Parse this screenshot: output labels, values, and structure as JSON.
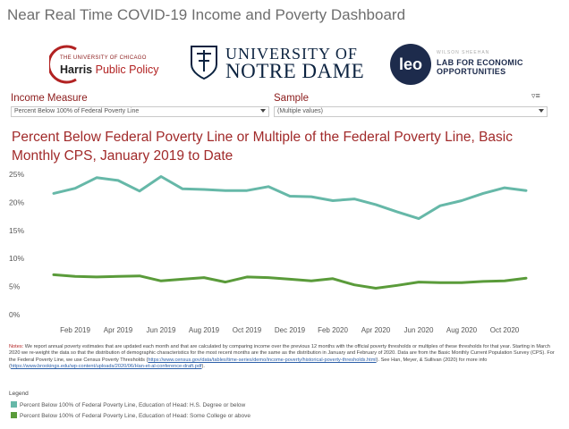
{
  "dashboard": {
    "title": "Near Real Time COVID-19 Income and Poverty Dashboard"
  },
  "logos": {
    "uchicago": {
      "small_text": "THE UNIVERSITY OF CHICAGO",
      "name_part1": "Harris",
      "name_part2": " Public Policy",
      "color": "#b22222"
    },
    "notre_dame": {
      "line1": "UNIVERSITY OF",
      "line2": "NOTRE DAME",
      "color": "#0c2340"
    },
    "leo": {
      "mark": "leo",
      "small_text": "WILSON SHEEHAN",
      "line1": "LAB FOR ECONOMIC",
      "line2": "OPPORTUNITIES",
      "color": "#1d2b4c"
    }
  },
  "filters": {
    "income_measure": {
      "label": "Income Measure",
      "value": "Percent Below 100% of Federal Poverty Line"
    },
    "sample": {
      "label": "Sample",
      "value": "(Multiple values)"
    }
  },
  "chart_title": "Percent Below Federal Poverty Line or Multiple of the Federal Poverty Line, Basic Monthly CPS, January 2019 to Date",
  "chart_data": {
    "type": "line",
    "x": [
      "Jan 2019",
      "Feb 2019",
      "Mar 2019",
      "Apr 2019",
      "May 2019",
      "Jun 2019",
      "Jul 2019",
      "Aug 2019",
      "Sep 2019",
      "Oct 2019",
      "Nov 2019",
      "Dec 2019",
      "Jan 2020",
      "Feb 2020",
      "Mar 2020",
      "Apr 2020",
      "May 2020",
      "Jun 2020",
      "Jul 2020",
      "Aug 2020",
      "Sep 2020",
      "Oct 2020",
      "Nov 2020"
    ],
    "xtick_labels": [
      "Feb 2019",
      "Apr 2019",
      "Jun 2019",
      "Aug 2019",
      "Oct 2019",
      "Dec 2019",
      "Feb 2020",
      "Apr 2020",
      "Jun 2020",
      "Aug 2020",
      "Oct 2020"
    ],
    "yticks": [
      "0%",
      "5%",
      "10%",
      "15%",
      "20%",
      "25%"
    ],
    "ylim": [
      0,
      25
    ],
    "grid": false,
    "series": [
      {
        "name": "Percent Below 100% of Federal Poverty Line, Education of Head: H.S. Degree or below",
        "color": "#66b8a8",
        "values": [
          21.6,
          22.5,
          24.4,
          23.9,
          22.0,
          24.6,
          22.4,
          22.3,
          22.1,
          22.1,
          22.8,
          21.1,
          21.0,
          20.3,
          20.6,
          19.6,
          18.3,
          17.1,
          19.4,
          20.3,
          21.6,
          22.6,
          22.1
        ]
      },
      {
        "name": "Percent Below 100% of Federal Poverty Line, Education of Head: Some College or above",
        "color": "#5a9b3a",
        "values": [
          7.1,
          6.8,
          6.7,
          6.8,
          6.9,
          6.0,
          6.3,
          6.6,
          5.8,
          6.7,
          6.6,
          6.3,
          6.0,
          6.4,
          5.3,
          4.7,
          5.2,
          5.8,
          5.7,
          5.7,
          5.9,
          6.0,
          6.5
        ]
      }
    ]
  },
  "notes": {
    "label": "Notes:",
    "text1": " We report annual poverty estimates that are updated each month and that are calculated by comparing income over the previous 12 months with the official poverty thresholds or multiples of these thresholds for that year.  Starting in March 2020 we re-weight the data so that the distribution of demographic characteristics for the most recent months are the same as the distribution in January and February of 2020. Data are from the Basic Monthly Current Population Survey (CPS). For the Federal Poverty Line, we use Census Poverty Thresholds (",
    "link1": "https://www.census.gov/data/tables/time-series/demo/income-poverty/historical-poverty-thresholds.html",
    "text2": "). See Han, Meyer, & Sullivan (2020) for more info (",
    "link2": "https://www.brookings.edu/wp-content/uploads/2020/06/Han-et-al-conference-draft.pdf",
    "text3": ")."
  },
  "legend": {
    "title": "Legend",
    "items": [
      {
        "label": "Percent Below 100% of Federal Poverty Line, Education of Head: H.S. Degree or below",
        "color": "#66b8a8"
      },
      {
        "label": "Percent Below 100% of Federal Poverty Line, Education of Head: Some College or above",
        "color": "#5a9b3a"
      }
    ]
  }
}
